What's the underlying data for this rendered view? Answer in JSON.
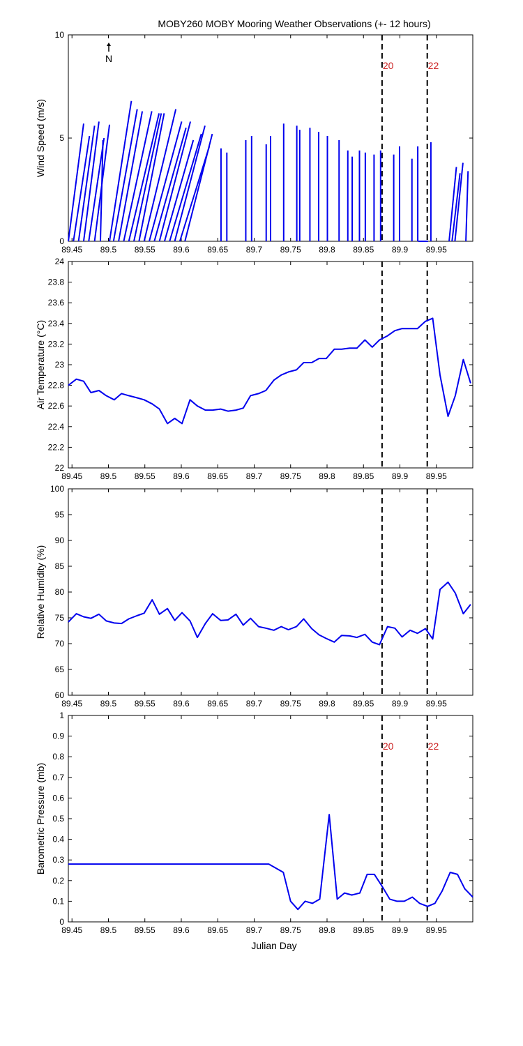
{
  "figure": {
    "title": "MOBY260 MOBY Mooring Weather Observations (+- 12 hours)",
    "xlabel": "Julian Day",
    "north_label": "N",
    "colors": {
      "series": "#0000ee",
      "event_label": "#cc2222",
      "axes": "#000000"
    }
  },
  "chart_data": [
    {
      "type": "line",
      "panel": "wind",
      "title": "MOBY260 MOBY Mooring Weather Observations (+- 12 hours)",
      "ylabel": "Wind Speed (m/s)",
      "xlabel": "",
      "xlim": [
        89.445,
        90.0
      ],
      "ylim": [
        0,
        10
      ],
      "xticks": [
        89.45,
        89.5,
        89.55,
        89.6,
        89.65,
        89.7,
        89.75,
        89.8,
        89.85,
        89.9,
        89.95
      ],
      "yticks": [
        0,
        5,
        10
      ],
      "north_arrow": true,
      "events": [
        {
          "x": 89.8755,
          "label": "20"
        },
        {
          "x": 89.9375,
          "label": "22"
        }
      ],
      "sticks": [
        [
          89.445,
          0,
          89.466,
          5.7
        ],
        [
          89.452,
          0,
          89.474,
          5.1
        ],
        [
          89.459,
          0,
          89.481,
          5.6
        ],
        [
          89.466,
          0,
          89.487,
          5.8
        ],
        [
          89.473,
          0,
          89.494,
          5.0
        ],
        [
          89.481,
          0,
          89.5015,
          5.65
        ],
        [
          89.489,
          0,
          89.4925,
          4.9
        ],
        [
          89.5015,
          0,
          89.5315,
          6.8
        ],
        [
          89.507,
          0,
          89.5395,
          6.4
        ],
        [
          89.514,
          0,
          89.5465,
          6.3
        ],
        [
          89.521,
          0,
          89.5595,
          6.3
        ],
        [
          89.528,
          0,
          89.5695,
          6.2
        ],
        [
          89.535,
          0,
          89.5725,
          6.2
        ],
        [
          89.542,
          0,
          89.5765,
          6.2
        ],
        [
          89.549,
          0,
          89.5925,
          6.4
        ],
        [
          89.556,
          0,
          89.6005,
          5.8
        ],
        [
          89.563,
          0,
          89.6065,
          5.5
        ],
        [
          89.57,
          0,
          89.6125,
          5.8
        ],
        [
          89.577,
          0,
          89.6165,
          4.9
        ],
        [
          89.584,
          0,
          89.6275,
          5.2
        ],
        [
          89.591,
          0,
          89.6325,
          5.6
        ],
        [
          89.598,
          0,
          89.6385,
          4.6
        ],
        [
          89.605,
          0,
          89.6425,
          5.2
        ],
        [
          89.6545,
          0,
          89.6545,
          4.5
        ],
        [
          89.6625,
          0,
          89.6625,
          4.3
        ],
        [
          89.6885,
          0,
          89.6885,
          4.9
        ],
        [
          89.6965,
          0,
          89.6965,
          5.1
        ],
        [
          89.7165,
          0,
          89.7165,
          4.7
        ],
        [
          89.7225,
          0,
          89.7225,
          5.1
        ],
        [
          89.7405,
          0,
          89.7405,
          5.7
        ],
        [
          89.7585,
          0,
          89.7585,
          5.6
        ],
        [
          89.7625,
          0,
          89.7625,
          5.4
        ],
        [
          89.7765,
          0,
          89.7765,
          5.5
        ],
        [
          89.7885,
          0,
          89.7885,
          5.3
        ],
        [
          89.8005,
          0,
          89.8005,
          5.1
        ],
        [
          89.8165,
          0,
          89.8165,
          4.9
        ],
        [
          89.8285,
          0,
          89.8285,
          4.4
        ],
        [
          89.8345,
          0,
          89.8345,
          4.1
        ],
        [
          89.8445,
          0,
          89.8445,
          4.4
        ],
        [
          89.8525,
          0,
          89.8525,
          4.3
        ],
        [
          89.8645,
          0,
          89.8645,
          4.2
        ],
        [
          89.8735,
          0,
          89.8735,
          4.4
        ],
        [
          89.8915,
          0,
          89.8915,
          4.2
        ],
        [
          89.8995,
          0,
          89.8995,
          4.6
        ],
        [
          89.9165,
          0,
          89.9165,
          4.0
        ],
        [
          89.9245,
          0,
          89.9245,
          4.6
        ],
        [
          89.9255,
          0,
          89.9385,
          0.0
        ],
        [
          89.9425,
          0,
          89.9425,
          4.8
        ],
        [
          89.9535,
          0,
          89.9535,
          0.0
        ],
        [
          89.9675,
          0,
          89.9775,
          3.6
        ],
        [
          89.9715,
          0,
          89.9825,
          3.3
        ],
        [
          89.9755,
          0,
          89.9865,
          3.8
        ],
        [
          89.9905,
          0,
          89.9935,
          3.4
        ]
      ]
    },
    {
      "type": "line",
      "panel": "temperature",
      "ylabel": "Air Temperature (°C)",
      "xlabel": "",
      "xlim": [
        89.445,
        90.0
      ],
      "ylim": [
        22,
        24
      ],
      "xticks": [
        89.45,
        89.5,
        89.55,
        89.6,
        89.65,
        89.7,
        89.75,
        89.8,
        89.85,
        89.9,
        89.95
      ],
      "yticks": [
        22,
        22.2,
        22.4,
        22.6,
        22.8,
        23,
        23.2,
        23.4,
        23.6,
        23.8,
        24
      ],
      "events": [
        {
          "x": 89.8755,
          "label": ""
        },
        {
          "x": 89.9375,
          "label": ""
        }
      ],
      "x": [
        89.445,
        89.456,
        89.466,
        89.476,
        89.487,
        89.497,
        89.508,
        89.518,
        89.528,
        89.539,
        89.549,
        89.56,
        89.57,
        89.581,
        89.591,
        89.601,
        89.612,
        89.622,
        89.633,
        89.643,
        89.654,
        89.664,
        89.675,
        89.685,
        89.695,
        89.706,
        89.716,
        89.727,
        89.737,
        89.747,
        89.758,
        89.768,
        89.779,
        89.789,
        89.799,
        89.81,
        89.82,
        89.831,
        89.841,
        89.852,
        89.862,
        89.872,
        89.883,
        89.893,
        89.903,
        89.914,
        89.924,
        89.935,
        89.945,
        89.955,
        89.966,
        89.976,
        89.987,
        89.997
      ],
      "y": [
        22.8,
        22.86,
        22.84,
        22.73,
        22.75,
        22.7,
        22.66,
        22.72,
        22.7,
        22.68,
        22.66,
        22.62,
        22.57,
        22.43,
        22.48,
        22.43,
        22.66,
        22.6,
        22.56,
        22.56,
        22.57,
        22.55,
        22.56,
        22.58,
        22.7,
        22.72,
        22.75,
        22.85,
        22.9,
        22.93,
        22.95,
        23.02,
        23.02,
        23.06,
        23.06,
        23.15,
        23.15,
        23.16,
        23.16,
        23.24,
        23.17,
        23.24,
        23.28,
        23.33,
        23.35,
        23.35,
        23.35,
        23.42,
        23.45,
        22.9,
        22.5,
        22.7,
        23.05,
        22.82
      ]
    },
    {
      "type": "line",
      "panel": "humidity",
      "ylabel": "Relative Humidity (%)",
      "xlabel": "",
      "xlim": [
        89.445,
        90.0
      ],
      "ylim": [
        60,
        100
      ],
      "xticks": [
        89.45,
        89.5,
        89.55,
        89.6,
        89.65,
        89.7,
        89.75,
        89.8,
        89.85,
        89.9,
        89.95
      ],
      "yticks": [
        60,
        65,
        70,
        75,
        80,
        85,
        90,
        95,
        100
      ],
      "events": [
        {
          "x": 89.8755,
          "label": ""
        },
        {
          "x": 89.9375,
          "label": ""
        }
      ],
      "x": [
        89.445,
        89.456,
        89.466,
        89.476,
        89.487,
        89.497,
        89.508,
        89.518,
        89.528,
        89.539,
        89.549,
        89.56,
        89.57,
        89.581,
        89.591,
        89.601,
        89.612,
        89.622,
        89.633,
        89.643,
        89.654,
        89.664,
        89.675,
        89.685,
        89.695,
        89.706,
        89.716,
        89.727,
        89.737,
        89.747,
        89.758,
        89.768,
        89.779,
        89.789,
        89.799,
        89.81,
        89.82,
        89.831,
        89.841,
        89.852,
        89.862,
        89.872,
        89.883,
        89.893,
        89.903,
        89.914,
        89.924,
        89.935,
        89.945,
        89.955,
        89.966,
        89.976,
        89.987,
        89.997
      ],
      "y": [
        74.2,
        75.8,
        75.2,
        74.9,
        75.7,
        74.4,
        74.0,
        73.9,
        74.8,
        75.4,
        75.9,
        78.5,
        75.7,
        76.8,
        74.5,
        76.0,
        74.4,
        71.2,
        73.9,
        75.8,
        74.5,
        74.6,
        75.7,
        73.6,
        74.9,
        73.3,
        73.0,
        72.6,
        73.3,
        72.7,
        73.3,
        74.8,
        72.9,
        71.7,
        71.0,
        70.3,
        71.6,
        71.5,
        71.2,
        71.8,
        70.3,
        69.8,
        73.3,
        73.0,
        71.3,
        72.6,
        72.0,
        72.9,
        70.9,
        80.5,
        81.9,
        79.8,
        75.8,
        77.6
      ]
    },
    {
      "type": "line",
      "panel": "pressure",
      "ylabel": "Barometric Pressure (mb)",
      "xlabel": "Julian Day",
      "xlim": [
        89.445,
        90.0
      ],
      "ylim": [
        0,
        1
      ],
      "xticks": [
        89.45,
        89.5,
        89.55,
        89.6,
        89.65,
        89.7,
        89.75,
        89.8,
        89.85,
        89.9,
        89.95
      ],
      "yticks": [
        0,
        0.1,
        0.2,
        0.3,
        0.4,
        0.5,
        0.6,
        0.7,
        0.8,
        0.9,
        1
      ],
      "events": [
        {
          "x": 89.8755,
          "label": "20"
        },
        {
          "x": 89.9375,
          "label": "22"
        }
      ],
      "x": [
        89.445,
        89.72,
        89.74,
        89.75,
        89.76,
        89.77,
        89.78,
        89.79,
        89.803,
        89.814,
        89.824,
        89.834,
        89.845,
        89.855,
        89.865,
        89.876,
        89.886,
        89.896,
        89.906,
        89.917,
        89.927,
        89.938,
        89.948,
        89.958,
        89.969,
        89.979,
        89.989,
        90.0
      ],
      "y": [
        0.28,
        0.28,
        0.24,
        0.1,
        0.06,
        0.1,
        0.09,
        0.11,
        0.52,
        0.11,
        0.14,
        0.13,
        0.14,
        0.23,
        0.23,
        0.17,
        0.11,
        0.1,
        0.1,
        0.12,
        0.09,
        0.075,
        0.09,
        0.15,
        0.24,
        0.23,
        0.16,
        0.12
      ]
    }
  ]
}
